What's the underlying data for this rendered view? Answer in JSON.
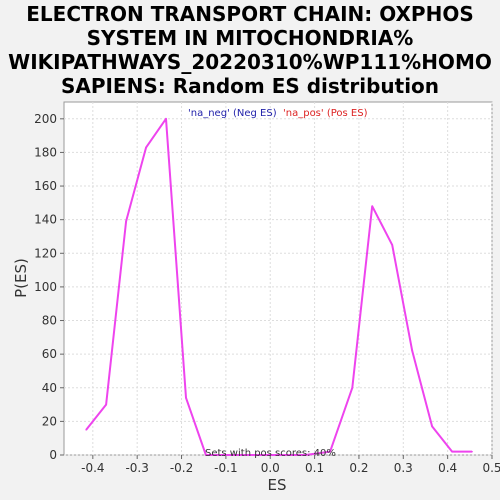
{
  "chart_data": {
    "type": "line",
    "title_lines": [
      "ELECTRON TRANSPORT CHAIN: OXPHOS",
      "SYSTEM IN MITOCHONDRIA%",
      "WIKIPATHWAYS_20220310%WP111%HOMO",
      "SAPIENS: Random ES distribution"
    ],
    "xlabel": "ES",
    "ylabel": "P(ES)",
    "xlim": [
      -0.465,
      0.5
    ],
    "ylim": [
      0,
      210
    ],
    "x_ticks": [
      -0.4,
      -0.3,
      -0.2,
      -0.1,
      0.0,
      0.1,
      0.2,
      0.3,
      0.4,
      0.5
    ],
    "x_tick_labels": [
      "-0.4",
      "-0.3",
      "-0.2",
      "-0.1",
      "0.0",
      "0.1",
      "0.2",
      "0.3",
      "0.4",
      "0.5"
    ],
    "y_ticks": [
      0,
      20,
      40,
      60,
      80,
      100,
      120,
      140,
      160,
      180,
      200
    ],
    "y_tick_labels": [
      "0",
      "20",
      "40",
      "60",
      "80",
      "100",
      "120",
      "140",
      "160",
      "180",
      "200"
    ],
    "grid": true,
    "legend": [
      {
        "label": "'na_neg' (Neg ES)",
        "color": "#2222aa"
      },
      {
        "label": "'na_pos' (Pos ES)",
        "color": "#dd2222"
      }
    ],
    "legend_position": "top-center",
    "annotation": "Sets with pos scores: 40%",
    "series": [
      {
        "color": "#ee44ee",
        "x": [
          -0.415,
          -0.37,
          -0.325,
          -0.28,
          -0.235,
          -0.19,
          -0.145,
          -0.1,
          -0.055,
          -0.01,
          0.035,
          0.08,
          0.135,
          0.185,
          0.23,
          0.275,
          0.32,
          0.365,
          0.41,
          0.455
        ],
        "y": [
          15,
          30,
          139,
          183,
          200,
          34,
          0,
          0,
          0,
          0,
          0,
          0,
          2,
          40,
          148,
          125,
          62,
          17,
          2,
          2
        ]
      }
    ]
  }
}
